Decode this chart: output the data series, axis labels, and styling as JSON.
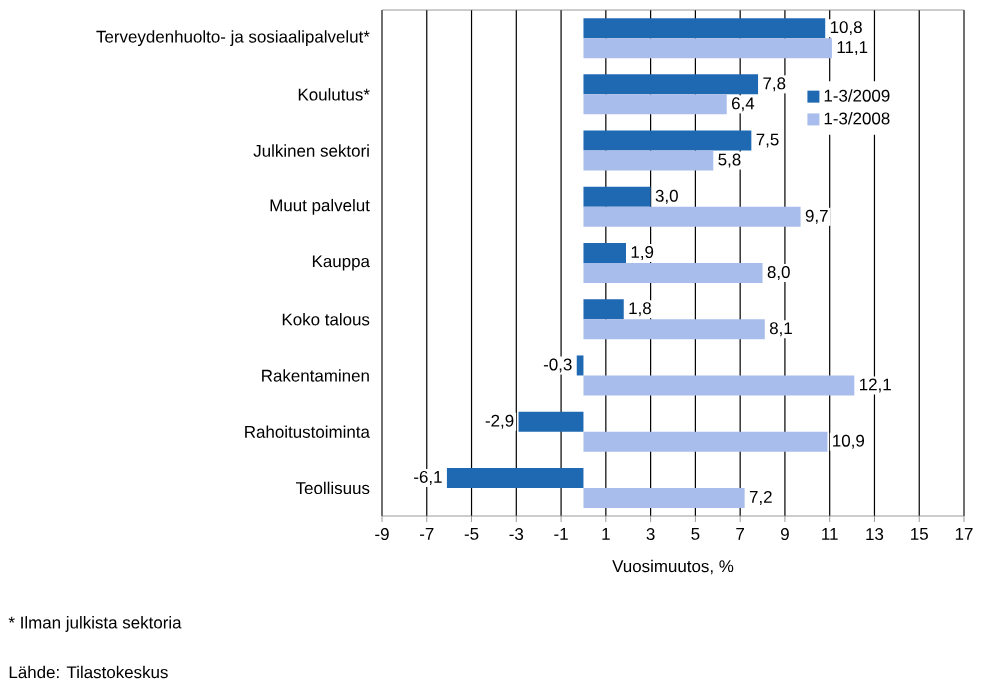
{
  "chart_data": {
    "type": "bar",
    "orientation": "horizontal",
    "categories": [
      "Terveydenhuolto- ja sosiaalipalvelut*",
      "Koulutus*",
      "Julkinen sektori",
      "Muut palvelut",
      "Kauppa",
      "Koko talous",
      "Rakentaminen",
      "Rahoitustoiminta",
      "Teollisuus"
    ],
    "series": [
      {
        "name": "1-3/2009",
        "color": "#1f69b3",
        "values": [
          10.8,
          7.8,
          7.5,
          3.0,
          1.9,
          1.8,
          -0.3,
          -2.9,
          -6.1
        ],
        "value_labels": [
          "10,8",
          "7,8",
          "7,5",
          "3,0",
          "1,9",
          "1,8",
          "-0,3",
          "-2,9",
          "-6,1"
        ]
      },
      {
        "name": "1-3/2008",
        "color": "#a8bdeb",
        "values": [
          11.1,
          6.4,
          5.8,
          9.7,
          8.0,
          8.1,
          12.1,
          10.9,
          7.2
        ],
        "value_labels": [
          "11,1",
          "6,4",
          "5,8",
          "9,7",
          "8,0",
          "8,1",
          "12,1",
          "10,9",
          "7,2"
        ]
      }
    ],
    "xlim": [
      -9,
      17
    ],
    "xticks": [
      -9,
      -7,
      -5,
      -3,
      -1,
      1,
      3,
      5,
      7,
      9,
      11,
      13,
      15,
      17
    ],
    "xlabel": "Vuosimuutos, %",
    "grid": "x",
    "legend": "top right",
    "annotations": [
      "* Ilman julkista sektoria",
      "Lähde: Tilastokeskus"
    ]
  }
}
